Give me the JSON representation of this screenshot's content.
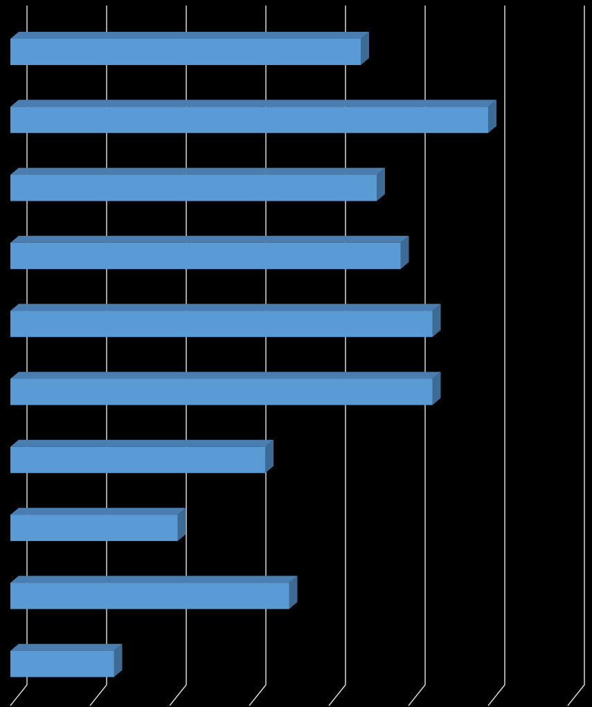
{
  "chart_data": {
    "type": "bar3d_horizontal",
    "categories": [
      null,
      null,
      null,
      null,
      null,
      null,
      null,
      null,
      null,
      null
    ],
    "values": [
      4.4,
      6.0,
      4.6,
      4.9,
      5.3,
      5.3,
      3.2,
      2.1,
      3.5,
      1.3
    ],
    "color": "#5b9bd5",
    "xlim": [
      0,
      7
    ],
    "xticks": [
      0,
      1,
      2,
      3,
      4,
      5,
      6,
      7
    ],
    "grid": true
  }
}
